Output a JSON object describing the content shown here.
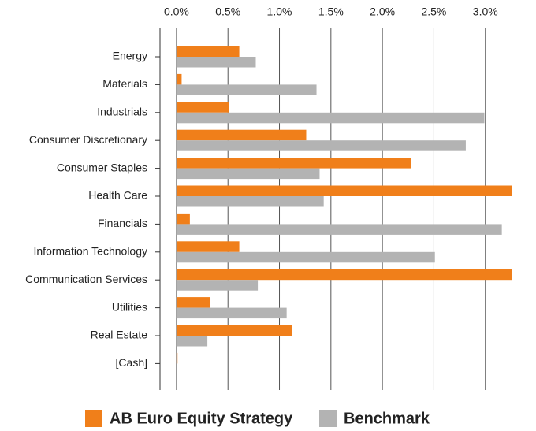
{
  "chart_data": {
    "type": "hbar",
    "categories": [
      "Energy",
      "Materials",
      "Industrials",
      "Consumer Discretionary",
      "Consumer Staples",
      "Health Care",
      "Financials",
      "Information Technology",
      "Communication Services",
      "Utilities",
      "Real Estate",
      "[Cash]"
    ],
    "series": [
      {
        "name": "AB Euro Equity Strategy",
        "color": "#f07f1a",
        "values": [
          0.61,
          0.05,
          0.51,
          1.26,
          2.28,
          3.26,
          0.13,
          0.61,
          3.26,
          0.33,
          1.12,
          0.01
        ]
      },
      {
        "name": "Benchmark",
        "color": "#b3b3b3",
        "values": [
          0.77,
          1.36,
          2.99,
          2.81,
          1.39,
          1.43,
          3.16,
          2.51,
          0.79,
          1.07,
          0.3,
          0
        ]
      }
    ],
    "xlim": [
      -0.16,
      3.4
    ],
    "xticks": [
      {
        "value": 0,
        "label": "0.0%"
      },
      {
        "value": 0.5,
        "label": "0.5%"
      },
      {
        "value": 1,
        "label": "1.0%"
      },
      {
        "value": 1.5,
        "label": "1.5%"
      },
      {
        "value": 2,
        "label": "2.0%"
      },
      {
        "value": 2.5,
        "label": "2.5%"
      },
      {
        "value": 3,
        "label": "3.0%"
      }
    ],
    "grid": true,
    "legend": "bottom"
  }
}
